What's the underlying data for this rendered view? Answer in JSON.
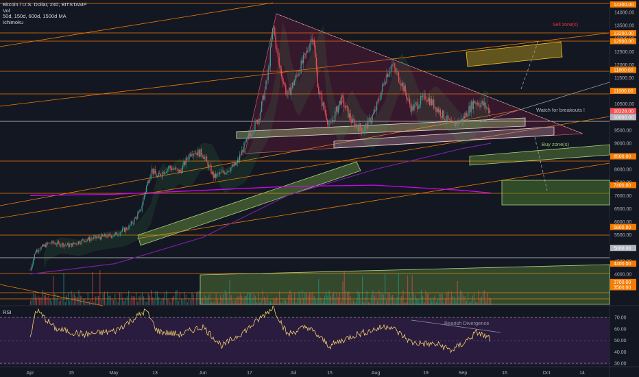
{
  "header": {
    "title": "Bitcoin / U.S. Dollar, 240, BITSTAMP",
    "vol": "Vol",
    "ma": "50d, 150d, 600d, 1500d MA",
    "ichimoku": "Ichimoku"
  },
  "rsi": {
    "label": "RSI",
    "ticks": [
      "70.00",
      "60.00",
      "50.00",
      "40.00",
      "30.00"
    ]
  },
  "annotations": {
    "sell_zone": "Sell zone(s)",
    "watch": "Watch for breakouts !",
    "buy_zone": "Buy zone(s)",
    "bearish_div": "Bearish Divergence"
  },
  "chart_data": {
    "type": "line",
    "symbol": "BTCUSD",
    "exchange": "BITSTAMP",
    "timeframe": "240",
    "x_ticks": [
      "Apr",
      "15",
      "May",
      "13",
      "Jun",
      "17",
      "Jul",
      "15",
      "Aug",
      "19",
      "Sep",
      "16",
      "Oct",
      "14"
    ],
    "price_ticks": [
      "14000.00",
      "13500.00",
      "13000.00",
      "12500.00",
      "12000.00",
      "11500.00",
      "11000.00",
      "10500.00",
      "10000.00",
      "9500.00",
      "9000.00",
      "8500.00",
      "8000.00",
      "7500.00",
      "7000.00",
      "6500.00",
      "6000.00",
      "5500.00",
      "5000.00",
      "4500.00",
      "4000.00",
      "3500.00"
    ],
    "price_labels": [
      {
        "text": "14300.00",
        "color": "#f57c00"
      },
      {
        "text": "13200.00",
        "color": "#f57c00"
      },
      {
        "text": "12900.00",
        "color": "#f57c00"
      },
      {
        "text": "11800.00",
        "color": "#f57c00"
      },
      {
        "text": "11000.00",
        "color": "#f57c00"
      },
      {
        "text": "10228.00",
        "color": "#ef5350"
      },
      {
        "text": "03:41:03",
        "color": "#ef5350"
      },
      {
        "text": "10000.00",
        "color": "#b2b5be"
      },
      {
        "text": "8500.00",
        "color": "#f57c00"
      },
      {
        "text": "7400.00",
        "color": "#f57c00"
      },
      {
        "text": "5800.00",
        "color": "#f57c00"
      },
      {
        "text": "5000.00",
        "color": "#b2b5be"
      },
      {
        "text": "4400.00",
        "color": "#f57c00"
      },
      {
        "text": "3700.00",
        "color": "#f57c00"
      },
      {
        "text": "3500.00",
        "color": "#f57c00"
      }
    ],
    "price": [
      [
        "Apr 1",
        4150
      ],
      [
        "Apr 3",
        4900
      ],
      [
        "Apr 8",
        5200
      ],
      [
        "Apr 15",
        5100
      ],
      [
        "Apr 20",
        5300
      ],
      [
        "Apr 25",
        5400
      ],
      [
        "May 1",
        5500
      ],
      [
        "May 6",
        5800
      ],
      [
        "May 10",
        6400
      ],
      [
        "May 12",
        7300
      ],
      [
        "May 14",
        8000
      ],
      [
        "May 16",
        7700
      ],
      [
        "May 20",
        8100
      ],
      [
        "May 24",
        7900
      ],
      [
        "May 28",
        8700
      ],
      [
        "Jun 1",
        8600
      ],
      [
        "Jun 5",
        7700
      ],
      [
        "Jun 10",
        8000
      ],
      [
        "Jun 13",
        8200
      ],
      [
        "Jun 17",
        9200
      ],
      [
        "Jun 21",
        10000
      ],
      [
        "Jun 24",
        11500
      ],
      [
        "Jun 26",
        13500
      ],
      [
        "Jun 28",
        12000
      ],
      [
        "Jul 1",
        10800
      ],
      [
        "Jul 4",
        11500
      ],
      [
        "Jul 8",
        12500
      ],
      [
        "Jul 10",
        13200
      ],
      [
        "Jul 12",
        11000
      ],
      [
        "Jul 16",
        9600
      ],
      [
        "Jul 20",
        10700
      ],
      [
        "Jul 24",
        9800
      ],
      [
        "Jul 28",
        9500
      ],
      [
        "Aug 1",
        10200
      ],
      [
        "Aug 5",
        11600
      ],
      [
        "Aug 7",
        12000
      ],
      [
        "Aug 10",
        11400
      ],
      [
        "Aug 14",
        10300
      ],
      [
        "Aug 19",
        10800
      ],
      [
        "Aug 24",
        10200
      ],
      [
        "Aug 28",
        9700
      ],
      [
        "Sep 1",
        9900
      ],
      [
        "Sep 5",
        10600
      ],
      [
        "Sep 8",
        10500
      ],
      [
        "Sep 11",
        10200
      ]
    ],
    "ma_purple": [
      [
        "Apr 1",
        4000
      ],
      [
        "May 1",
        4400
      ],
      [
        "Jun 1",
        5400
      ],
      [
        "Jul 1",
        7000
      ],
      [
        "Aug 1",
        8000
      ],
      [
        "Sep 1",
        8800
      ],
      [
        "Sep 11",
        9000
      ]
    ],
    "ma_magenta": [
      [
        "Apr 1",
        7000
      ],
      [
        "May 1",
        7050
      ],
      [
        "Jun 1",
        7200
      ],
      [
        "Jul 1",
        7350
      ],
      [
        "Aug 1",
        7400
      ],
      [
        "Sep 1",
        7200
      ],
      [
        "Sep 11",
        7100
      ]
    ],
    "rsi": [
      [
        "Apr 1",
        50
      ],
      [
        "Apr 3",
        77
      ],
      [
        "Apr 10",
        60
      ],
      [
        "Apr 20",
        55
      ],
      [
        "May 1",
        58
      ],
      [
        "May 12",
        76
      ],
      [
        "May 16",
        58
      ],
      [
        "May 24",
        55
      ],
      [
        "Jun 1",
        62
      ],
      [
        "Jun 8",
        45
      ],
      [
        "Jun 17",
        60
      ],
      [
        "Jun 26",
        79
      ],
      [
        "Jul 1",
        55
      ],
      [
        "Jul 8",
        62
      ],
      [
        "Jul 16",
        45
      ],
      [
        "Jul 24",
        54
      ],
      [
        "Aug 6",
        63
      ],
      [
        "Aug 14",
        48
      ],
      [
        "Aug 24",
        46
      ],
      [
        "Aug 28",
        41
      ],
      [
        "Sep 1",
        47
      ],
      [
        "Sep 6",
        57
      ],
      [
        "Sep 11",
        51
      ]
    ],
    "rsi_levels": [
      70,
      50,
      30
    ]
  }
}
